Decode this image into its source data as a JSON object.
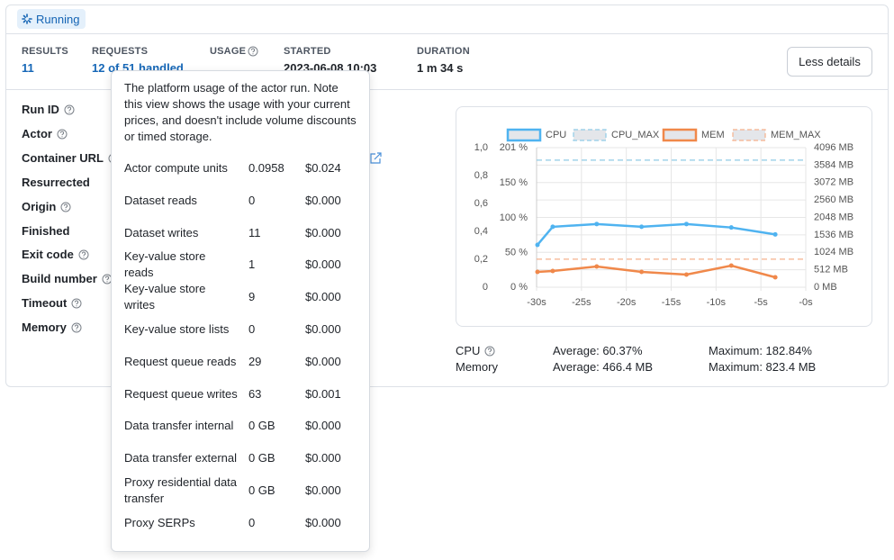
{
  "status": "Running",
  "stats": [
    {
      "label": "RESULTS",
      "value": "11"
    },
    {
      "label": "REQUESTS",
      "value": "12 of 51 handled"
    },
    {
      "label": "USAGE"
    },
    {
      "label": "STARTED",
      "value": "2023-06-08 10:03"
    },
    {
      "label": "DURATION",
      "value": "1 m 34 s"
    }
  ],
  "button": "Less details",
  "details": [
    {
      "label": "Run ID",
      "help": true
    },
    {
      "label": "Actor",
      "help": true
    },
    {
      "label": "Container URL",
      "help": true
    },
    {
      "label": "Resurrected",
      "help": false
    },
    {
      "label": "Origin",
      "help": true
    },
    {
      "label": "Finished",
      "help": false
    },
    {
      "label": "Exit code",
      "help": true
    },
    {
      "label": "Build number",
      "help": true
    },
    {
      "label": "Timeout",
      "help": true
    },
    {
      "label": "Memory",
      "help": true
    }
  ],
  "tooltip": {
    "intro": "The platform usage of the actor run. Note this view shows the usage with your current prices, and doesn't include volume discounts or timed storage.",
    "rows": [
      [
        "Actor compute units",
        "0.0958",
        "$0.024"
      ],
      [
        "Dataset reads",
        "0",
        "$0.000"
      ],
      [
        "Dataset writes",
        "11",
        "$0.000"
      ],
      [
        "Key-value store reads",
        "1",
        "$0.000"
      ],
      [
        "Key-value store writes",
        "9",
        "$0.000"
      ],
      [
        "Key-value store lists",
        "0",
        "$0.000"
      ],
      [
        "Request queue reads",
        "29",
        "$0.000"
      ],
      [
        "Request queue writes",
        "63",
        "$0.001"
      ],
      [
        "Data transfer internal",
        "0 GB",
        "$0.000"
      ],
      [
        "Data transfer external",
        "0 GB",
        "$0.000"
      ],
      [
        "Proxy residential data transfer",
        "0 GB",
        "$0.000"
      ],
      [
        "Proxy SERPs",
        "0",
        "$0.000"
      ]
    ]
  },
  "usage_chart": {
    "type": "line",
    "grid": true,
    "xlim": [
      -30,
      0
    ],
    "xticks": [
      {
        "value": -30,
        "label": "-30s"
      },
      {
        "value": -25,
        "label": "-25s"
      },
      {
        "value": -20,
        "label": "-20s"
      },
      {
        "value": -15,
        "label": "-15s"
      },
      {
        "value": -10,
        "label": "-10s"
      },
      {
        "value": -5,
        "label": "-5s"
      },
      {
        "value": 0,
        "label": "-0s"
      }
    ],
    "ylim": [
      0,
      201
    ],
    "yticks": [
      {
        "value": 201,
        "label": "201 %"
      },
      {
        "value": 150,
        "label": "150 %"
      },
      {
        "value": 100,
        "label": "100 %"
      },
      {
        "value": 50,
        "label": "50 %"
      },
      {
        "value": 0,
        "label": "0 %"
      }
    ],
    "y2lim": [
      0,
      4096
    ],
    "y2ticks": [
      {
        "value": 4096,
        "label": "4096 MB"
      },
      {
        "value": 3584,
        "label": "3584 MB"
      },
      {
        "value": 3072,
        "label": "3072 MB"
      },
      {
        "value": 2560,
        "label": "2560 MB"
      },
      {
        "value": 2048,
        "label": "2048 MB"
      },
      {
        "value": 1536,
        "label": "1536 MB"
      },
      {
        "value": 1024,
        "label": "1024 MB"
      },
      {
        "value": 512,
        "label": "512 MB"
      },
      {
        "value": 0,
        "label": "0 MB"
      }
    ],
    "y3lim": [
      0,
      1
    ],
    "y3ticks": [
      {
        "value": 1,
        "label": "1,0"
      },
      {
        "value": 0.8,
        "label": "0,8"
      },
      {
        "value": 0.6,
        "label": "0,6"
      },
      {
        "value": 0.4,
        "label": "0,4"
      },
      {
        "value": 0.2,
        "label": "0,2"
      },
      0
    ],
    "series": [
      {
        "name": "CPU",
        "color": "#4fb3f0",
        "dashed": false,
        "axis": "y",
        "x": [
          -29.9,
          -28.2,
          -23.3,
          -18.3,
          -13.3,
          -8.3,
          -3.4
        ],
        "values": [
          61,
          87,
          91,
          87,
          91,
          86,
          76
        ]
      },
      {
        "name": "CPU_MAX",
        "color": "#8fcbe6",
        "dashed": true,
        "axis": "y",
        "x": [
          -30,
          0
        ],
        "values": [
          183,
          183
        ]
      },
      {
        "name": "MEM",
        "color": "#f0884a",
        "dashed": false,
        "axis": "y2",
        "x": [
          -29.9,
          -28.2,
          -23.3,
          -18.3,
          -13.3,
          -8.3,
          -3.4
        ],
        "values": [
          449,
          476,
          608,
          449,
          370,
          634,
          291
        ]
      },
      {
        "name": "MEM_MAX",
        "color": "#f5b08c",
        "dashed": true,
        "axis": "y2",
        "x": [
          -30,
          0
        ],
        "values": [
          823,
          823
        ]
      }
    ]
  },
  "summary": [
    {
      "label": "CPU",
      "help": true,
      "average": "Average: 60.37%",
      "maximum": "Maximum: 182.84%"
    },
    {
      "label": "Memory",
      "help": false,
      "average": "Average: 466.4 MB",
      "maximum": "Maximum: 823.4 MB"
    }
  ]
}
